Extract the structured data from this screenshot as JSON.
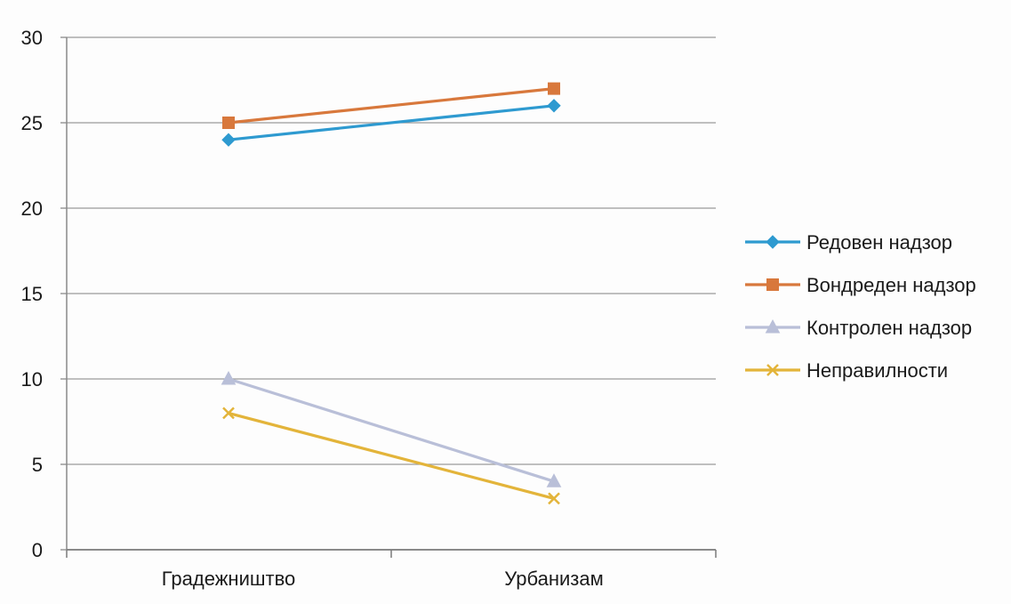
{
  "chart_data": {
    "type": "line",
    "title": "",
    "xlabel": "",
    "ylabel": "",
    "categories": [
      "Градежништво",
      "Урбанизам"
    ],
    "ylim": [
      0,
      30
    ],
    "yticks": [
      0,
      5,
      10,
      15,
      20,
      25,
      30
    ],
    "grid": true,
    "legend_position": "right",
    "series": [
      {
        "name": "Редовен надзор",
        "values": [
          24,
          26
        ],
        "color": "#2e9ad0",
        "marker": "diamond"
      },
      {
        "name": "Вондреден надзор",
        "values": [
          25,
          27
        ],
        "color": "#d8783c",
        "marker": "square"
      },
      {
        "name": "Контролен надзор",
        "values": [
          10,
          4
        ],
        "color": "#b9bfd8",
        "marker": "triangle"
      },
      {
        "name": "Неправилности",
        "values": [
          8,
          3
        ],
        "color": "#e3b43a",
        "marker": "x"
      }
    ]
  }
}
